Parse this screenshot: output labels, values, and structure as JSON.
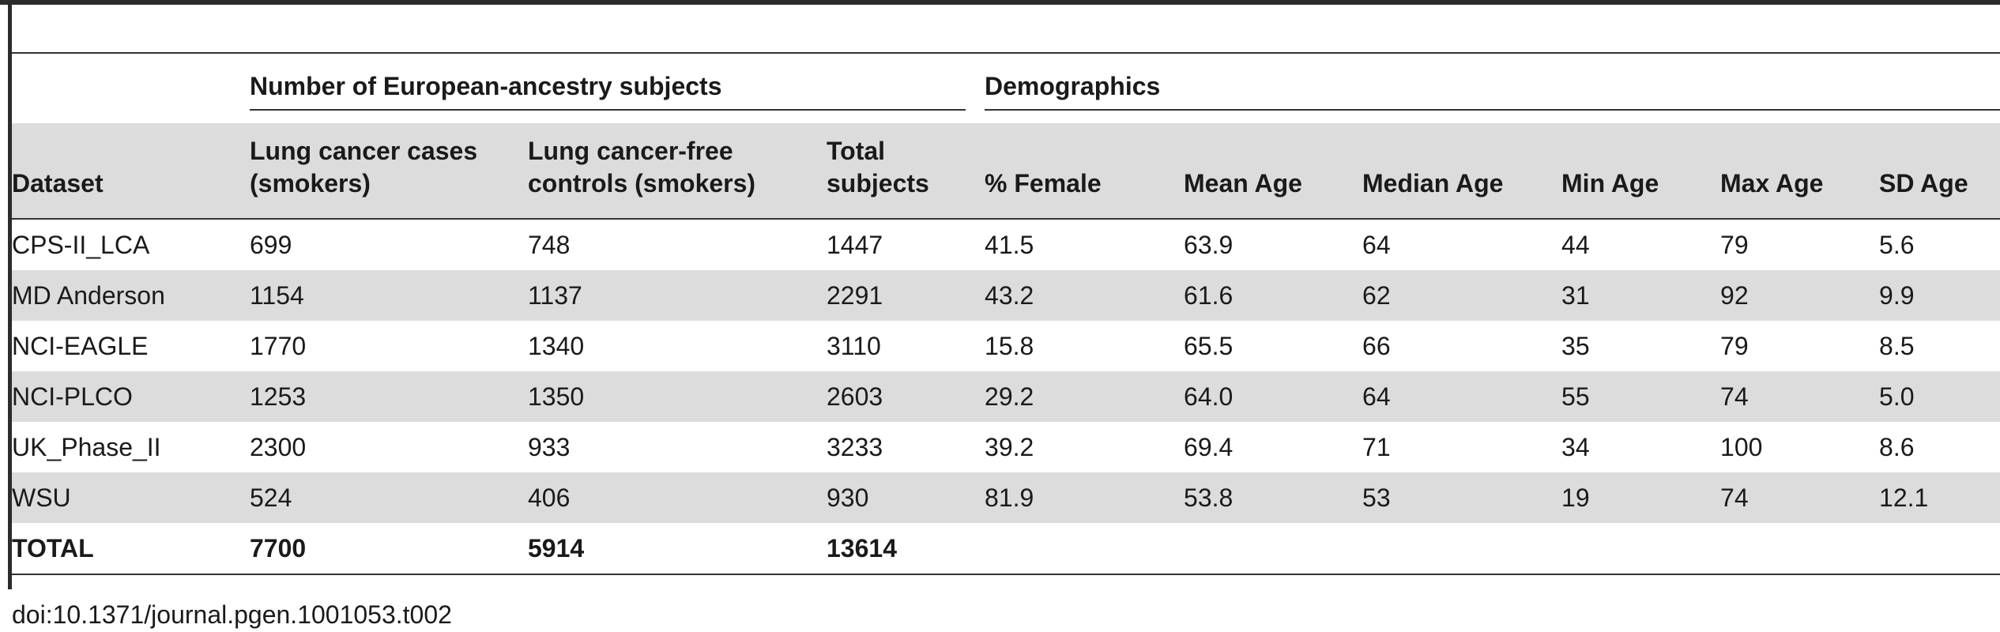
{
  "table": {
    "group_headers": {
      "subjects": "Number of European-ancestry subjects",
      "demographics": "Demographics"
    },
    "columns": [
      "Dataset",
      "Lung cancer cases (smokers)",
      "Lung cancer-free controls (smokers)",
      "Total subjects",
      "% Female",
      "Mean Age",
      "Median Age",
      "Min Age",
      "Max Age",
      "SD Age"
    ],
    "rows": [
      [
        "CPS-II_LCA",
        "699",
        "748",
        "1447",
        "41.5",
        "63.9",
        "64",
        "44",
        "79",
        "5.6"
      ],
      [
        "MD Anderson",
        "1154",
        "1137",
        "2291",
        "43.2",
        "61.6",
        "62",
        "31",
        "92",
        "9.9"
      ],
      [
        "NCI-EAGLE",
        "1770",
        "1340",
        "3110",
        "15.8",
        "65.5",
        "66",
        "35",
        "79",
        "8.5"
      ],
      [
        "NCI-PLCO",
        "1253",
        "1350",
        "2603",
        "29.2",
        "64.0",
        "64",
        "55",
        "74",
        "5.0"
      ],
      [
        "UK_Phase_II",
        "2300",
        "933",
        "3233",
        "39.2",
        "69.4",
        "71",
        "34",
        "100",
        "8.6"
      ],
      [
        "WSU",
        "524",
        "406",
        "930",
        "81.9",
        "53.8",
        "53",
        "19",
        "74",
        "12.1"
      ]
    ],
    "total_row": [
      "TOTAL",
      "7700",
      "5914",
      "13614",
      "",
      "",
      "",
      "",
      "",
      ""
    ]
  },
  "doi": "doi:10.1371/journal.pgen.1001053.t002",
  "colors": {
    "shade": "#dcdcdd",
    "rule": "#2b2b2b"
  }
}
